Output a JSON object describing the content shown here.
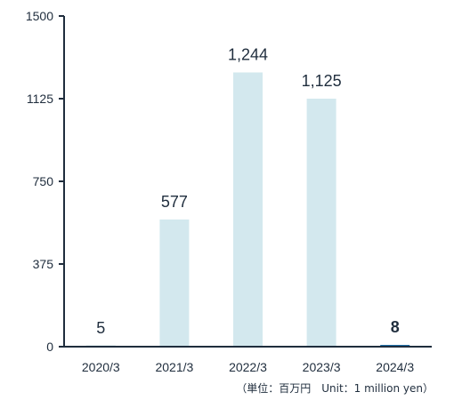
{
  "chart_data": {
    "type": "bar",
    "categories": [
      "2020/3",
      "2021/3",
      "2022/3",
      "2023/3",
      "2024/3"
    ],
    "values": [
      5,
      577,
      1244,
      1125,
      8
    ],
    "data_labels": [
      "5",
      "577",
      "1,244",
      "1,125",
      "8"
    ],
    "highlight_index": 4,
    "ylim": [
      0,
      1500
    ],
    "yticks": [
      0,
      375,
      750,
      1125,
      1500
    ],
    "ytick_labels": [
      "0",
      "375",
      "750",
      "1125",
      "1500"
    ],
    "unit_note": "（単位：百万円　Unit：1 million yen）",
    "grid": false,
    "colors": {
      "bar": "#d3e8ee",
      "bar_highlight": "#1b6fa8",
      "axis": "#1f2d3d",
      "text": "#1f2d3d"
    }
  }
}
